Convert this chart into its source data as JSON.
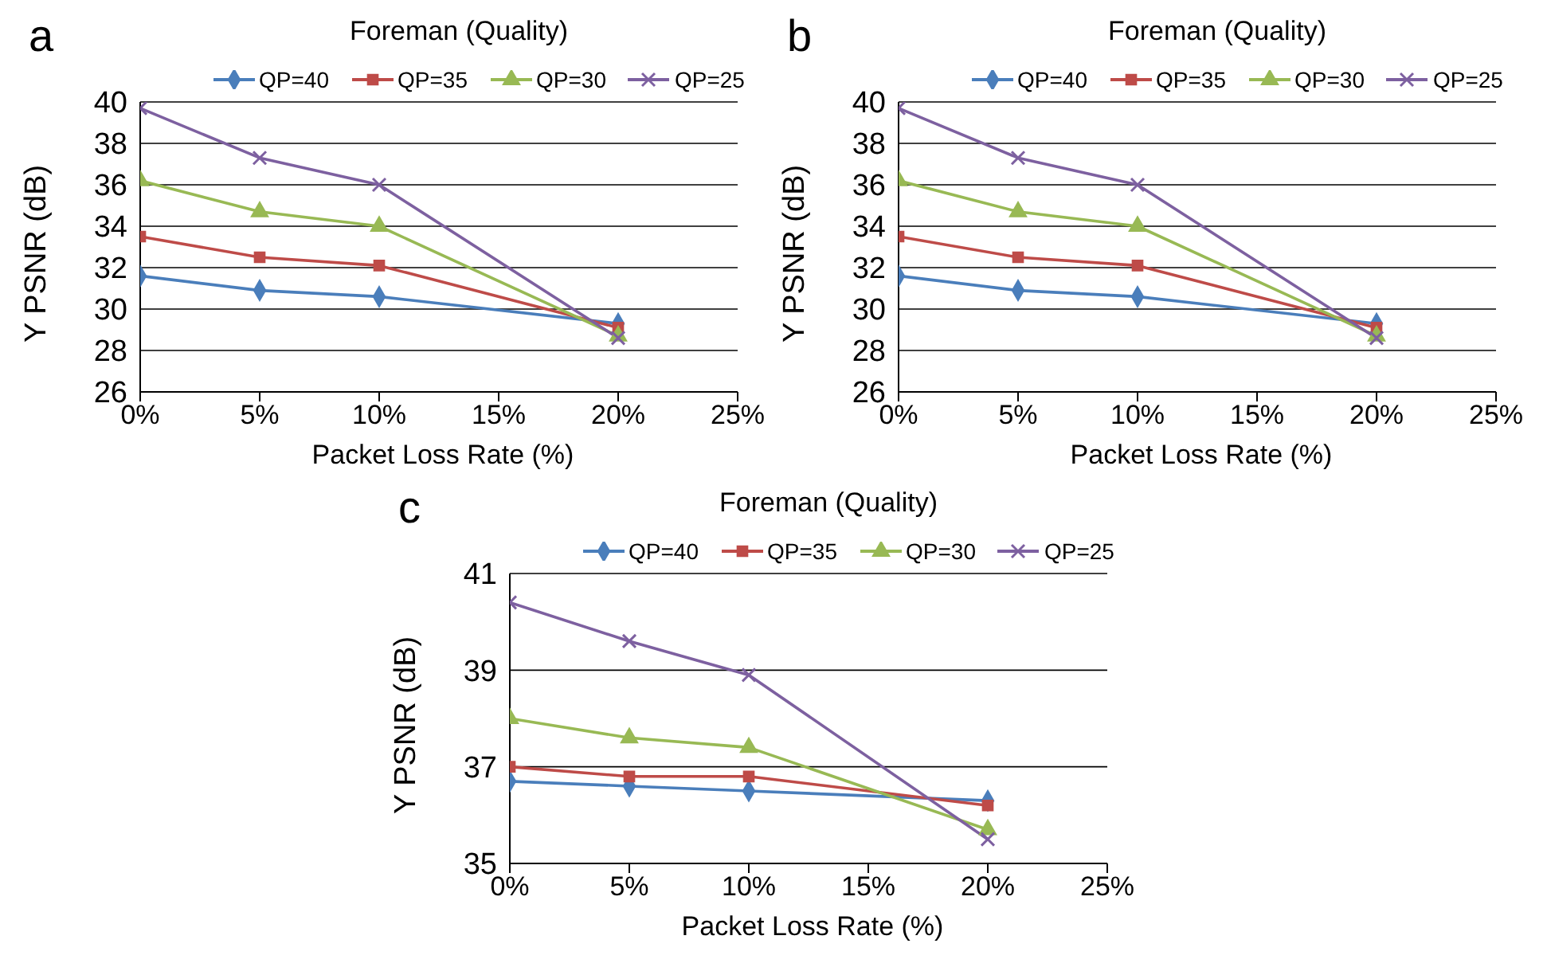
{
  "chart_data": [
    {
      "type": "line",
      "title": "Foreman (Quality)",
      "annotations": [
        "a"
      ],
      "xlabel": "Packet Loss Rate (%)",
      "ylabel": "Y PSNR (dB)",
      "x": [
        0,
        5,
        10,
        20
      ],
      "xlim": [
        0,
        25
      ],
      "xticks": [
        {
          "value": 0,
          "label": "0%"
        },
        {
          "value": 5,
          "label": "5%"
        },
        {
          "value": 10,
          "label": "10%"
        },
        {
          "value": 15,
          "label": "15%"
        },
        {
          "value": 20,
          "label": "20%"
        },
        {
          "value": 25,
          "label": "25%"
        }
      ],
      "ylim": [
        26,
        40
      ],
      "yticks": [
        26,
        28,
        30,
        32,
        34,
        36,
        38,
        40
      ],
      "grid": "y",
      "legend": "top",
      "line_style": "solid",
      "series": [
        {
          "name": "QP=40",
          "color": "#4a7ebb",
          "marker": "diamond",
          "values": [
            31.6,
            30.9,
            30.6,
            29.3
          ]
        },
        {
          "name": "QP=35",
          "color": "#be4b48",
          "marker": "square",
          "values": [
            33.5,
            32.5,
            32.1,
            29.1
          ]
        },
        {
          "name": "QP=30",
          "color": "#98b954",
          "marker": "triangle",
          "values": [
            36.2,
            34.7,
            34.0,
            28.7
          ]
        },
        {
          "name": "QP=25",
          "color": "#7d60a0",
          "marker": "cross",
          "values": [
            39.7,
            37.3,
            36.0,
            28.6
          ]
        }
      ]
    },
    {
      "type": "line",
      "title": "Foreman (Quality)",
      "annotations": [
        "b"
      ],
      "xlabel": "Packet Loss Rate (%)",
      "ylabel": "Y PSNR (dB)",
      "x": [
        0,
        5,
        10,
        20
      ],
      "xlim": [
        0,
        25
      ],
      "xticks": [
        {
          "value": 0,
          "label": "0%"
        },
        {
          "value": 5,
          "label": "5%"
        },
        {
          "value": 10,
          "label": "10%"
        },
        {
          "value": 15,
          "label": "15%"
        },
        {
          "value": 20,
          "label": "20%"
        },
        {
          "value": 25,
          "label": "25%"
        }
      ],
      "ylim": [
        26,
        40
      ],
      "yticks": [
        26,
        28,
        30,
        32,
        34,
        36,
        38,
        40
      ],
      "grid": "y",
      "legend": "top",
      "line_style": "solid",
      "series": [
        {
          "name": "QP=40",
          "color": "#4a7ebb",
          "marker": "diamond",
          "values": [
            31.6,
            30.9,
            30.6,
            29.3
          ]
        },
        {
          "name": "QP=35",
          "color": "#be4b48",
          "marker": "square",
          "values": [
            33.5,
            32.5,
            32.1,
            29.1
          ]
        },
        {
          "name": "QP=30",
          "color": "#98b954",
          "marker": "triangle",
          "values": [
            36.2,
            34.7,
            34.0,
            28.7
          ]
        },
        {
          "name": "QP=25",
          "color": "#7d60a0",
          "marker": "cross",
          "values": [
            39.7,
            37.3,
            36.0,
            28.6
          ]
        }
      ]
    },
    {
      "type": "line",
      "title": "Foreman (Quality)",
      "annotations": [
        "c"
      ],
      "xlabel": "Packet Loss Rate (%)",
      "ylabel": "Y PSNR (dB)",
      "x": [
        0,
        5,
        10,
        20
      ],
      "xlim": [
        0,
        25
      ],
      "xticks": [
        {
          "value": 0,
          "label": "0%"
        },
        {
          "value": 5,
          "label": "5%"
        },
        {
          "value": 10,
          "label": "10%"
        },
        {
          "value": 15,
          "label": "15%"
        },
        {
          "value": 20,
          "label": "20%"
        },
        {
          "value": 25,
          "label": "25%"
        }
      ],
      "ylim": [
        35,
        41
      ],
      "yticks": [
        35,
        37,
        39,
        41
      ],
      "grid": "y",
      "legend": "top",
      "line_style": "solid",
      "series": [
        {
          "name": "QP=40",
          "color": "#4a7ebb",
          "marker": "diamond",
          "values": [
            36.7,
            36.6,
            36.5,
            36.3
          ]
        },
        {
          "name": "QP=35",
          "color": "#be4b48",
          "marker": "square",
          "values": [
            37.0,
            36.8,
            36.8,
            36.2
          ]
        },
        {
          "name": "QP=30",
          "color": "#98b954",
          "marker": "triangle",
          "values": [
            38.0,
            37.6,
            37.4,
            35.7
          ]
        },
        {
          "name": "QP=25",
          "color": "#7d60a0",
          "marker": "cross",
          "values": [
            40.4,
            39.6,
            38.9,
            35.5
          ]
        }
      ]
    }
  ]
}
